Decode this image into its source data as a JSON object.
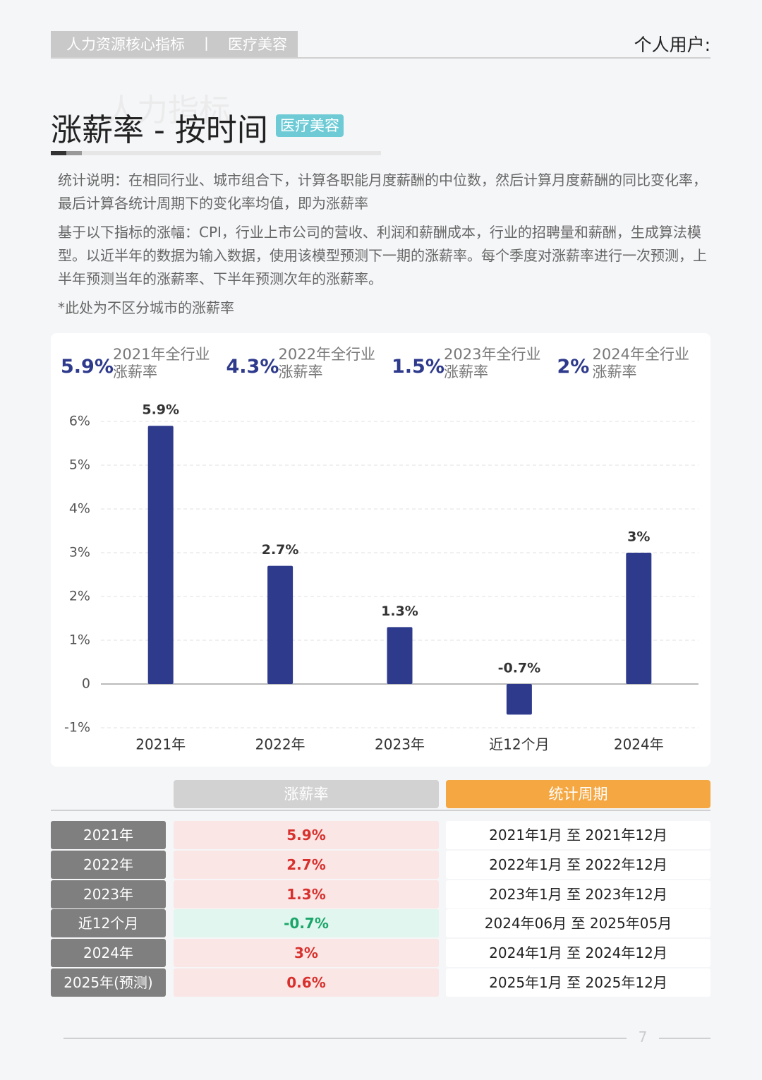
{
  "header": {
    "tags": [
      "人力资源核心指标",
      "丨",
      "医疗美容"
    ],
    "user": "个人用户:"
  },
  "watermark": "人力指标",
  "title": "涨薪率 - 按时间",
  "badge": "医疗美容",
  "description": [
    "统计说明：在相同行业、城市组合下，计算各职能月度薪酬的中位数，然后计算月度薪酬的同比变化率，最后计算各统计周期下的变化率均值，即为涨薪率",
    "基于以下指标的涨幅：CPI，行业上市公司的营收、利润和薪酬成本，行业的招聘量和薪酬，生成算法模型。以近半年的数据为输入数据，使用该模型预测下一期的涨薪率。每个季度对涨薪率进行一次预测，上半年预测当年的涨薪率、下半年预测次年的涨薪率。",
    "*此处为不区分城市的涨薪率"
  ],
  "summary": [
    {
      "value": "5.9%",
      "label": "2021年全行业",
      "sublabel": "涨薪率"
    },
    {
      "value": "4.3%",
      "label": "2022年全行业",
      "sublabel": "涨薪率"
    },
    {
      "value": "1.5%",
      "label": "2023年全行业",
      "sublabel": "涨薪率"
    },
    {
      "value": "2%",
      "label": "2024年全行业",
      "sublabel": "涨薪率"
    }
  ],
  "chart_data": {
    "type": "bar",
    "color": "#2e3a8c",
    "grid": true,
    "categories": [
      "2021年",
      "2022年",
      "2023年",
      "近12个月",
      "2024年"
    ],
    "values": [
      5.9,
      2.7,
      1.3,
      -0.7,
      3
    ],
    "value_labels": [
      "5.9%",
      "2.7%",
      "1.3%",
      "-0.7%",
      "3%"
    ],
    "ylim": [
      -1,
      6
    ],
    "yticks": [
      {
        "value": -1,
        "label": "-1%"
      },
      0,
      {
        "value": 1,
        "label": "1%"
      },
      {
        "value": 2,
        "label": "2%"
      },
      {
        "value": 3,
        "label": "3%"
      },
      {
        "value": 4,
        "label": "4%"
      },
      {
        "value": 5,
        "label": "5%"
      },
      {
        "value": 6,
        "label": "6%"
      }
    ]
  },
  "table": {
    "headers": [
      "涨薪率",
      "统计周期"
    ],
    "rows": [
      [
        "2021年",
        "5.9%",
        "2021年1月 至 2021年12月"
      ],
      [
        "2022年",
        "2.7%",
        "2022年1月 至 2022年12月"
      ],
      [
        "2023年",
        "1.3%",
        "2023年1月 至 2023年12月"
      ],
      [
        "近12个月",
        "-0.7%",
        "2024年06月 至 2025年05月"
      ],
      [
        "2024年",
        "3%",
        "2024年1月 至 2024年12月"
      ],
      [
        "2025年(预测)",
        "0.6%",
        "2025年1月 至 2025年12月"
      ]
    ]
  },
  "page_number": "7"
}
